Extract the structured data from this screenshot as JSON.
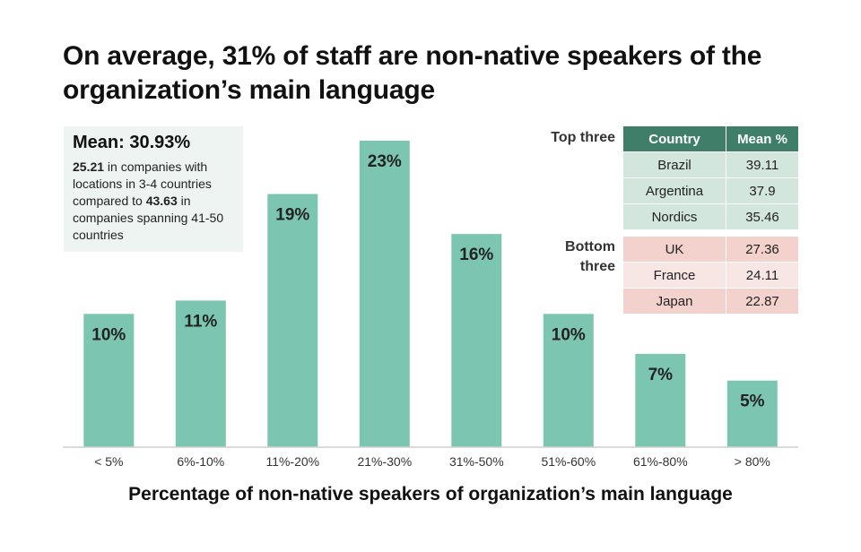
{
  "title": "On average, 31% of staff are non-native speakers of the organization’s main language",
  "chart_data": {
    "type": "bar",
    "categories": [
      "< 5%",
      "6%-10%",
      "11%-20%",
      "21%-30%",
      "31%-50%",
      "51%-60%",
      "61%-80%",
      "> 80%"
    ],
    "values": [
      10,
      11,
      19,
      23,
      16,
      10,
      7,
      5
    ],
    "value_labels": [
      "10%",
      "11%",
      "19%",
      "23%",
      "16%",
      "10%",
      "7%",
      "5%"
    ],
    "title": "On average, 31% of staff are non-native speakers of the organization’s main language",
    "xlabel": "Percentage of non-native speakers of organization’s main language",
    "ylabel": "",
    "ylim": [
      0,
      23
    ],
    "grid": false,
    "bar_color": "#7cc6b1"
  },
  "mean_box": {
    "title": "Mean: 30.93%",
    "value_low": "25.21",
    "text_1": " in companies with locations in 3-4 countries compared to ",
    "value_high": "43.63",
    "text_2": " in companies spanning 41-50 countries"
  },
  "table": {
    "headers": [
      "Country",
      "Mean %"
    ],
    "top_label": "Top three",
    "bottom_label": "Bottom three",
    "top_rows": [
      {
        "country": "Brazil",
        "mean": "39.11"
      },
      {
        "country": "Argentina",
        "mean": "37.9"
      },
      {
        "country": "Nordics",
        "mean": "35.46"
      }
    ],
    "bottom_rows": [
      {
        "country": "UK",
        "mean": "27.36"
      },
      {
        "country": "France",
        "mean": "24.11"
      },
      {
        "country": "Japan",
        "mean": "22.87"
      }
    ]
  },
  "colors": {
    "header_bg": "#3f7f6a",
    "top_row_bg": "#d3e6dd",
    "bottom_row_bg": "#f3d1cd",
    "mean_box_bg": "#eef4f1"
  }
}
